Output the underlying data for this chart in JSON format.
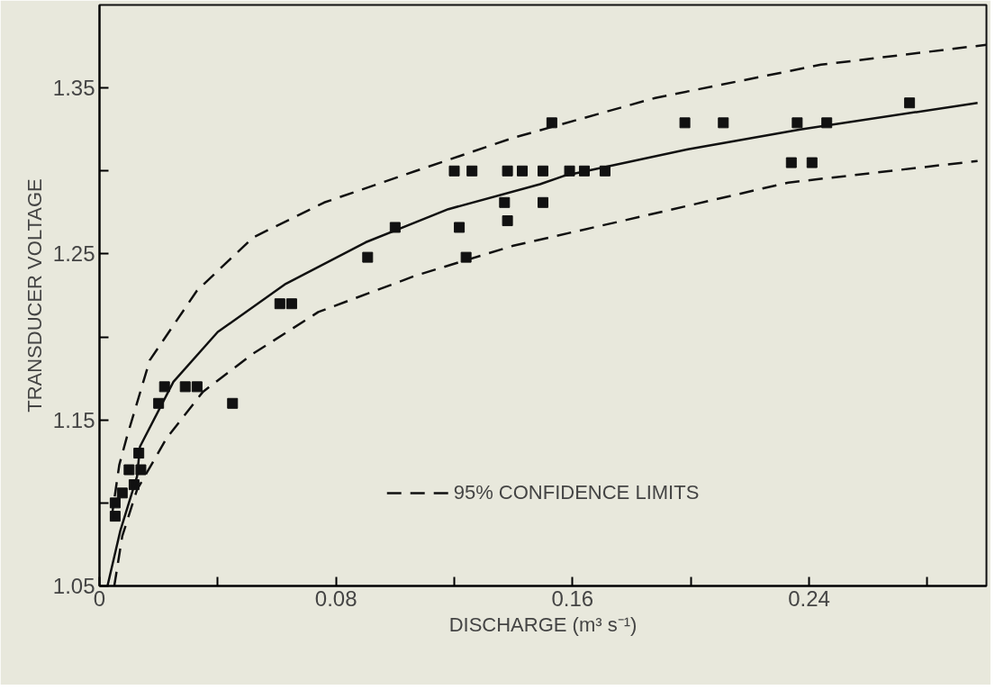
{
  "chart_data": {
    "type": "scatter",
    "xlabel": "DISCHARGE (m³ s⁻¹)",
    "ylabel": "TRANSDUCER VOLTAGE",
    "xlim": [
      0,
      0.3
    ],
    "ylim": [
      1.05,
      1.4
    ],
    "xticks": [
      0,
      {
        "value": 0.04,
        "label": null
      },
      0.08,
      {
        "value": 0.12,
        "label": null
      },
      0.16,
      {
        "value": 0.2,
        "label": null
      },
      0.24,
      {
        "value": 0.28,
        "label": null
      }
    ],
    "yticks": [
      1.05,
      {
        "value": 1.1,
        "label": null
      },
      1.15,
      {
        "value": 1.2,
        "label": null
      },
      1.25,
      {
        "value": 1.3,
        "label": null
      },
      1.35
    ],
    "grid": false,
    "legend": "bottom",
    "series": [
      {
        "marker": "square",
        "color": "#111111",
        "x": [
          0.12,
          0.126,
          0.138,
          0.143,
          0.15,
          0.159,
          0.164,
          0.171,
          0.137,
          0.138,
          0.15,
          0.1217,
          0.124,
          0.1,
          0.0907,
          0.061,
          0.065,
          0.022,
          0.029,
          0.033,
          0.02,
          0.045,
          0.153,
          0.198,
          0.211,
          0.236,
          0.246,
          0.274,
          0.234,
          0.241,
          0.0133,
          0.01,
          0.014,
          0.0117,
          0.0077,
          0.0053,
          0.0053
        ],
        "values": [
          1.3,
          1.3,
          1.3,
          1.3,
          1.3,
          1.3,
          1.3,
          1.3,
          1.281,
          1.27,
          1.281,
          1.266,
          1.248,
          1.266,
          1.248,
          1.22,
          1.22,
          1.17,
          1.17,
          1.17,
          1.16,
          1.16,
          1.329,
          1.329,
          1.329,
          1.329,
          1.329,
          1.341,
          1.305,
          1.305,
          1.13,
          1.12,
          1.12,
          1.111,
          1.106,
          1.1,
          1.092
        ]
      },
      {
        "type": "line",
        "line_style": "solid",
        "color": "#111111",
        "x": [
          0.0027,
          0.007,
          0.0127,
          0.0137,
          0.025,
          0.04,
          0.063,
          0.09,
          0.118,
          0.149,
          0.157,
          0.199,
          0.237,
          0.297
        ],
        "values": [
          1.05,
          1.083,
          1.116,
          1.134,
          1.173,
          1.203,
          1.232,
          1.257,
          1.277,
          1.292,
          1.297,
          1.313,
          1.325,
          1.341
        ]
      },
      {
        "type": "line",
        "line_style": "dashed",
        "color": "#111111",
        "name": "95% CONFIDENCE LIMITS",
        "x": [
          0.004,
          0.0067,
          0.0093,
          0.017,
          0.033,
          0.052,
          0.076,
          0.107,
          0.14,
          0.188,
          0.244,
          0.286,
          0.3
        ],
        "values": [
          1.09,
          1.123,
          1.14,
          1.186,
          1.228,
          1.26,
          1.281,
          1.3,
          1.32,
          1.344,
          1.364,
          1.373,
          1.376
        ]
      },
      {
        "type": "line",
        "line_style": "dashed",
        "color": "#111111",
        "x": [
          0.005,
          0.0077,
          0.0127,
          0.0227,
          0.035,
          0.052,
          0.074,
          0.107,
          0.14,
          0.177,
          0.233,
          0.297
        ],
        "values": [
          1.05,
          1.08,
          1.108,
          1.139,
          1.167,
          1.19,
          1.215,
          1.237,
          1.255,
          1.27,
          1.293,
          1.306
        ]
      }
    ]
  }
}
